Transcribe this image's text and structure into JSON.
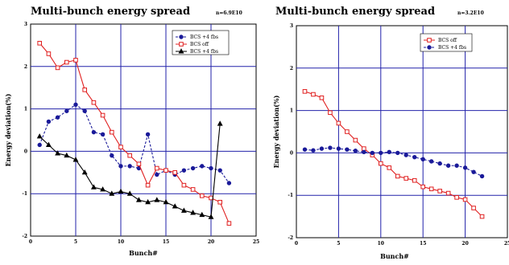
{
  "chart_data": [
    {
      "type": "line",
      "title": "Multi-bunch energy spread",
      "note": "n=6.9E10",
      "xlabel": "Bunch#",
      "ylabel": "Energy deviation(%)",
      "xlim": [
        0,
        25
      ],
      "ylim": [
        -2,
        3
      ],
      "xticks": [
        0,
        5,
        10,
        15,
        20,
        25
      ],
      "yticks": [
        -2,
        -1,
        0,
        1,
        2,
        3
      ],
      "grid": true,
      "legend_position": "top-right",
      "series": [
        {
          "name": "BCS +4 fbs",
          "color": "#1a1a99",
          "dash": "3,2",
          "marker": "circle",
          "x": [
            1,
            2,
            3,
            4,
            5,
            6,
            7,
            8,
            9,
            10,
            11,
            12,
            13,
            14,
            15,
            16,
            17,
            18,
            19,
            20,
            21,
            22
          ],
          "y": [
            0.15,
            0.7,
            0.8,
            0.95,
            1.1,
            0.95,
            0.45,
            0.4,
            -0.1,
            -0.35,
            -0.35,
            -0.4,
            0.4,
            -0.55,
            -0.45,
            -0.55,
            -0.45,
            -0.4,
            -0.35,
            -0.4,
            -0.45,
            -0.75
          ]
        },
        {
          "name": "BCS off",
          "color": "#e02020",
          "dash": "",
          "marker": "square",
          "x": [
            1,
            2,
            3,
            4,
            5,
            6,
            7,
            8,
            9,
            10,
            11,
            12,
            13,
            14,
            15,
            16,
            17,
            18,
            19,
            20,
            21,
            22
          ],
          "y": [
            2.55,
            2.3,
            1.97,
            2.1,
            2.15,
            1.45,
            1.15,
            0.85,
            0.45,
            0.1,
            -0.1,
            -0.3,
            -0.8,
            -0.4,
            -0.45,
            -0.5,
            -0.8,
            -0.9,
            -1.05,
            -1.1,
            -1.2,
            -1.7
          ]
        },
        {
          "name": "BCS +4 fbs",
          "color": "#000000",
          "dash": "",
          "marker": "triangle",
          "x": [
            1,
            2,
            3,
            4,
            5,
            6,
            7,
            8,
            9,
            10,
            11,
            12,
            13,
            14,
            15,
            16,
            17,
            18,
            19,
            20,
            21
          ],
          "y": [
            0.35,
            0.15,
            -0.05,
            -0.1,
            -0.2,
            -0.5,
            -0.85,
            -0.9,
            -1.0,
            -0.95,
            -1.0,
            -1.15,
            -1.2,
            -1.15,
            -1.2,
            -1.3,
            -1.4,
            -1.45,
            -1.5,
            -1.55,
            0.65
          ]
        }
      ]
    },
    {
      "type": "line",
      "title": "Multi-bunch energy spread",
      "note": "n=3.2E10",
      "xlabel": "Bunch#",
      "ylabel": "Energy deviation(%)",
      "xlim": [
        0,
        25
      ],
      "ylim": [
        -2,
        3
      ],
      "xticks": [
        0,
        5,
        10,
        15,
        20,
        25
      ],
      "yticks": [
        -2,
        -1,
        0,
        1,
        2,
        3
      ],
      "grid": true,
      "legend_position": "top-right",
      "series": [
        {
          "name": "BCS off",
          "color": "#e02020",
          "dash": "",
          "marker": "square",
          "x": [
            1,
            2,
            3,
            4,
            5,
            6,
            7,
            8,
            9,
            10,
            11,
            12,
            13,
            14,
            15,
            16,
            17,
            18,
            19,
            20,
            21,
            22
          ],
          "y": [
            1.45,
            1.38,
            1.3,
            0.95,
            0.7,
            0.5,
            0.3,
            0.1,
            -0.05,
            -0.25,
            -0.35,
            -0.55,
            -0.6,
            -0.65,
            -0.8,
            -0.85,
            -0.9,
            -0.95,
            -1.05,
            -1.1,
            -1.3,
            -1.5
          ]
        },
        {
          "name": "BCS +4 fbs",
          "color": "#1a1a99",
          "dash": "3,2",
          "marker": "circle",
          "x": [
            1,
            2,
            3,
            4,
            5,
            6,
            7,
            8,
            9,
            10,
            11,
            12,
            13,
            14,
            15,
            16,
            17,
            18,
            19,
            20,
            21,
            22
          ],
          "y": [
            0.08,
            0.06,
            0.1,
            0.12,
            0.1,
            0.08,
            0.05,
            0.02,
            0.0,
            0.0,
            0.02,
            0.0,
            -0.05,
            -0.1,
            -0.15,
            -0.2,
            -0.25,
            -0.3,
            -0.3,
            -0.35,
            -0.45,
            -0.55
          ]
        }
      ]
    }
  ]
}
